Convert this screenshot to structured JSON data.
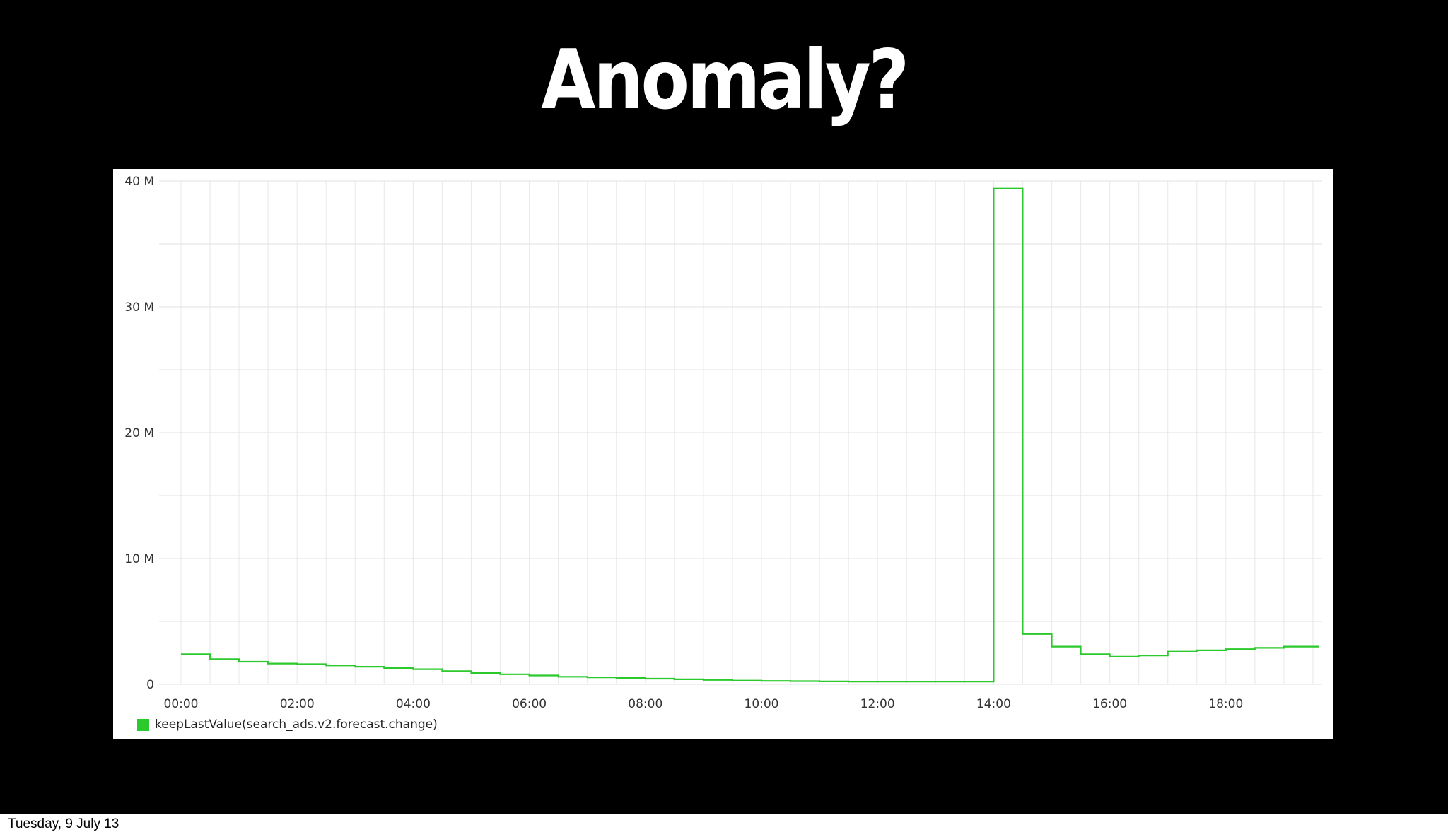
{
  "slide": {
    "title": "Anomaly?",
    "footer_date": "Tuesday, 9 July 13",
    "background": "#000000"
  },
  "chart_data": {
    "type": "line",
    "title": "",
    "xlabel": "",
    "ylabel": "",
    "line_shape": "step",
    "x_tick_labels": [
      "00:00",
      "02:00",
      "04:00",
      "06:00",
      "08:00",
      "10:00",
      "12:00",
      "14:00",
      "16:00",
      "18:00"
    ],
    "y_tick_labels": [
      "0",
      "10 M",
      "20 M",
      "30 M",
      "40 M"
    ],
    "xlim_hours": [
      -0.3,
      19.6
    ],
    "ylim": [
      0,
      40000000
    ],
    "grid": true,
    "legend_position": "bottom-left",
    "series": [
      {
        "name": "keepLastValue(search_ads.v2.forecast.change)",
        "color": "#2bc92b",
        "x_hours": [
          0,
          0.5,
          1.0,
          1.5,
          2.0,
          2.5,
          3.0,
          3.5,
          4.0,
          4.5,
          5.0,
          5.5,
          6.0,
          6.5,
          7.0,
          7.5,
          8.0,
          8.5,
          9.0,
          9.5,
          10.0,
          10.5,
          11.0,
          11.5,
          12.0,
          12.5,
          13.0,
          13.5,
          13.93,
          14.0,
          14.45,
          14.5,
          15.0,
          15.5,
          16.0,
          16.5,
          17.0,
          17.5,
          18.0,
          18.5,
          19.0,
          19.6
        ],
        "values": [
          2400000,
          2000000,
          1800000,
          1650000,
          1600000,
          1500000,
          1400000,
          1300000,
          1200000,
          1050000,
          900000,
          800000,
          700000,
          600000,
          550000,
          500000,
          450000,
          400000,
          350000,
          300000,
          270000,
          250000,
          230000,
          220000,
          220000,
          220000,
          220000,
          220000,
          220000,
          39400000,
          39400000,
          4000000,
          3000000,
          2400000,
          2200000,
          2300000,
          2600000,
          2700000,
          2800000,
          2900000,
          3000000,
          3000000
        ]
      }
    ]
  }
}
